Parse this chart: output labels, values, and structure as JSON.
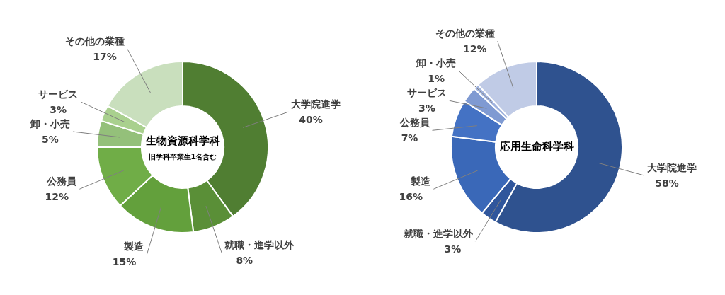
{
  "chart_data": [
    {
      "type": "donut",
      "title": "生物資源科学科",
      "subtitle": "旧学科卒業生1名含む",
      "categories": [
        "大学院進学",
        "就職・進学以外",
        "製造",
        "公務員",
        "卸・小売",
        "サービス",
        "その他の業種"
      ],
      "values": [
        40,
        8,
        15,
        12,
        5,
        3,
        17
      ],
      "value_labels": [
        "40%",
        "8%",
        "15%",
        "12%",
        "5%",
        "3%",
        "17%"
      ],
      "colors": [
        "#507e32",
        "#5a8f37",
        "#63a03c",
        "#70ad47",
        "#94c07a",
        "#a9d08e",
        "#c9dfbd"
      ]
    },
    {
      "type": "donut",
      "title": "応用生命科学科",
      "categories": [
        "大学院進学",
        "就職・進学以外",
        "製造",
        "公務員",
        "サービス",
        "卸・小売",
        "その他の業種"
      ],
      "values": [
        58,
        3,
        16,
        7,
        3,
        1,
        12
      ],
      "value_labels": [
        "58%",
        "3%",
        "16%",
        "7%",
        "3%",
        "1%",
        "12%"
      ],
      "colors": [
        "#2f528f",
        "#30569c",
        "#3a68b8",
        "#4472c4",
        "#7f9ad2",
        "#a0b3de",
        "#c0cbe6"
      ]
    }
  ]
}
